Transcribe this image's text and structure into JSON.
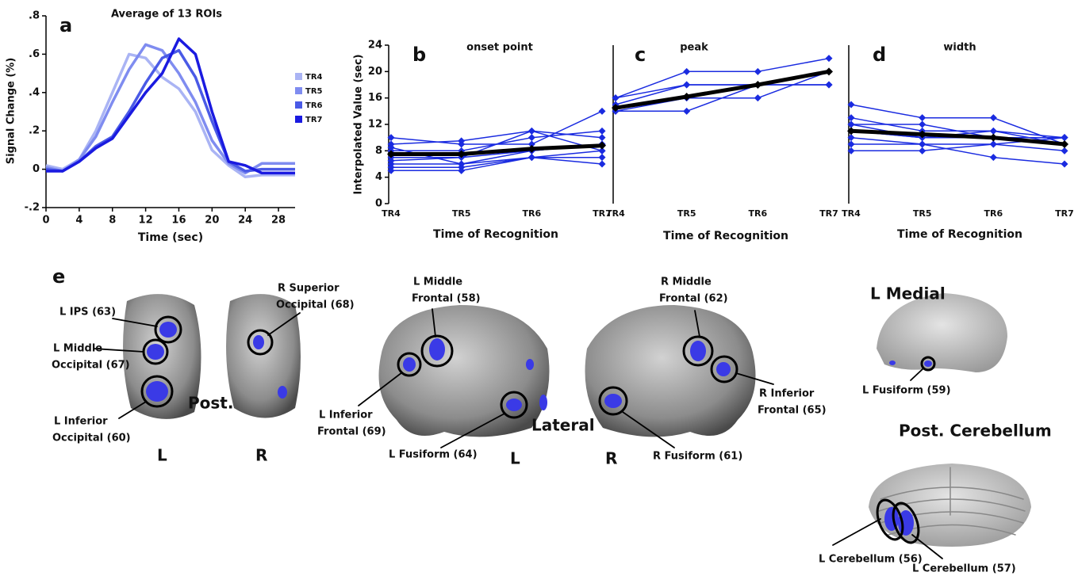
{
  "chart_data": [
    {
      "type": "line",
      "panel": "a",
      "title": "Average of 13 ROIs",
      "x_label": "Time (sec)",
      "y_label": "Signal Change (%)",
      "x": [
        0,
        2,
        4,
        6,
        8,
        10,
        12,
        14,
        16,
        18,
        20,
        22,
        24,
        26,
        28,
        30
      ],
      "xlim": [
        0,
        30
      ],
      "xticks": [
        0,
        4,
        8,
        12,
        16,
        20,
        24,
        28
      ],
      "ylim": [
        -0.2,
        0.8
      ],
      "yticks": [
        {
          "value": 0.8,
          "label": ".8"
        },
        {
          "value": 0.6,
          "label": ".6"
        },
        {
          "value": 0.4,
          "label": ".4"
        },
        {
          "value": 0.2,
          "label": ".2"
        },
        0,
        {
          "value": -0.2,
          "label": "-.2"
        }
      ],
      "legend": "right",
      "series": [
        {
          "name": "TR4",
          "color": "#aab4f4",
          "values": [
            0.02,
            0,
            0.05,
            0.2,
            0.4,
            0.6,
            0.58,
            0.48,
            0.42,
            0.3,
            0.1,
            0.02,
            -0.04,
            -0.03,
            -0.03,
            -0.03
          ]
        },
        {
          "name": "TR5",
          "color": "#7f8cf0",
          "values": [
            0.01,
            -0.01,
            0.05,
            0.17,
            0.35,
            0.52,
            0.65,
            0.62,
            0.5,
            0.35,
            0.15,
            0.03,
            -0.02,
            0.03,
            0.03,
            0.03
          ]
        },
        {
          "name": "TR6",
          "color": "#4a5ae6",
          "values": [
            0,
            -0.01,
            0.04,
            0.12,
            0.17,
            0.3,
            0.45,
            0.58,
            0.62,
            0.48,
            0.25,
            0.04,
            -0.01,
            0,
            0,
            0
          ]
        },
        {
          "name": "TR7",
          "color": "#1a1ae0",
          "values": [
            -0.01,
            -0.01,
            0.04,
            0.11,
            0.16,
            0.28,
            0.4,
            0.5,
            0.68,
            0.6,
            0.3,
            0.04,
            0.02,
            -0.02,
            -0.02,
            -0.02
          ]
        }
      ]
    },
    {
      "type": "line",
      "panel": "b",
      "title": "onset point",
      "x_label": "Time of Recognition",
      "y_label": "Interpolated Value (sec)",
      "categories": [
        "TR4",
        "TR5",
        "TR6",
        "TR7"
      ],
      "ylim": [
        0,
        24
      ],
      "yticks": [
        0,
        4,
        8,
        12,
        16,
        20,
        24
      ],
      "series": [
        {
          "color": "#1a2be0",
          "values": [
            10,
            9,
            9,
            14
          ]
        },
        {
          "color": "#1a2be0",
          "values": [
            9,
            9.5,
            11,
            10
          ]
        },
        {
          "color": "#1a2be0",
          "values": [
            8,
            8,
            10,
            11
          ]
        },
        {
          "color": "#1a2be0",
          "values": [
            7,
            7,
            8,
            9
          ]
        },
        {
          "color": "#1a2be0",
          "values": [
            6,
            6,
            7,
            8
          ]
        },
        {
          "color": "#1a2be0",
          "values": [
            5.5,
            5.5,
            7,
            7
          ]
        },
        {
          "color": "#1a2be0",
          "values": [
            5,
            5,
            7,
            6
          ]
        },
        {
          "color": "#1a2be0",
          "values": [
            6.5,
            7,
            11,
            8
          ]
        },
        {
          "color": "#1a2be0",
          "values": [
            8.5,
            6,
            8,
            9
          ]
        },
        {
          "color": "#000000",
          "values": [
            7.5,
            7.5,
            8.3,
            8.8
          ]
        }
      ]
    },
    {
      "type": "line",
      "panel": "c",
      "title": "peak",
      "x_label": "Time of Recognition",
      "categories": [
        "TR4",
        "TR5",
        "TR6",
        "TR7"
      ],
      "ylim": [
        0,
        24
      ],
      "series": [
        {
          "color": "#1a2be0",
          "values": [
            16,
            20,
            20,
            22
          ]
        },
        {
          "color": "#1a2be0",
          "values": [
            14,
            14,
            18,
            20
          ]
        },
        {
          "color": "#1a2be0",
          "values": [
            16,
            18,
            18,
            18
          ]
        },
        {
          "color": "#1a2be0",
          "values": [
            14,
            16,
            16,
            20
          ]
        },
        {
          "color": "#1a2be0",
          "values": [
            15,
            18,
            18,
            18
          ]
        },
        {
          "color": "#000000",
          "values": [
            14.5,
            16.2,
            18,
            20
          ]
        }
      ]
    },
    {
      "type": "line",
      "panel": "d",
      "title": "width",
      "x_label": "Time of Recognition",
      "categories": [
        "TR4",
        "TR5",
        "TR6",
        "TR7"
      ],
      "ylim": [
        0,
        24
      ],
      "series": [
        {
          "color": "#1a2be0",
          "values": [
            15,
            13,
            13,
            9
          ]
        },
        {
          "color": "#1a2be0",
          "values": [
            13,
            11,
            11,
            10
          ]
        },
        {
          "color": "#1a2be0",
          "values": [
            12,
            12,
            10,
            10
          ]
        },
        {
          "color": "#1a2be0",
          "values": [
            11,
            10,
            10,
            9
          ]
        },
        {
          "color": "#1a2be0",
          "values": [
            10,
            9,
            9,
            8
          ]
        },
        {
          "color": "#1a2be0",
          "values": [
            9,
            9,
            7,
            6
          ]
        },
        {
          "color": "#1a2be0",
          "values": [
            8,
            8,
            9,
            10
          ]
        },
        {
          "color": "#1a2be0",
          "values": [
            12,
            10,
            11,
            9
          ]
        },
        {
          "color": "#1a2be0",
          "values": [
            11,
            10,
            10,
            10
          ]
        },
        {
          "color": "#000000",
          "values": [
            11,
            10.5,
            10,
            9
          ]
        }
      ]
    }
  ],
  "brain_panel": {
    "panel": "e",
    "regions": [
      {
        "lines": [
          "L IPS (63)"
        ]
      },
      {
        "lines": [
          "L Middle",
          "Occipital (67)"
        ]
      },
      {
        "lines": [
          "L Inferior",
          "Occipital (60)"
        ]
      },
      {
        "lines": [
          "R Superior",
          "Occipital (68)"
        ]
      },
      {
        "lines": [
          "L Middle",
          "Frontal (58)"
        ]
      },
      {
        "lines": [
          "L Inferior",
          "Frontal (69)"
        ]
      },
      {
        "lines": [
          "L Fusiform (64)"
        ]
      },
      {
        "lines": [
          "R Middle",
          "Frontal (62)"
        ]
      },
      {
        "lines": [
          "R Inferior",
          "Frontal (65)"
        ]
      },
      {
        "lines": [
          "R Fusiform (61)"
        ]
      },
      {
        "lines": [
          "L Fusiform (59)"
        ]
      },
      {
        "lines": [
          "L Cerebellum (56)"
        ]
      },
      {
        "lines": [
          "L Cerebellum (57)"
        ]
      }
    ],
    "view_labels": [
      "Post.",
      "L",
      "R",
      "Lateral",
      "L",
      "R",
      "L Medial",
      "Post. Cerebellum"
    ]
  }
}
